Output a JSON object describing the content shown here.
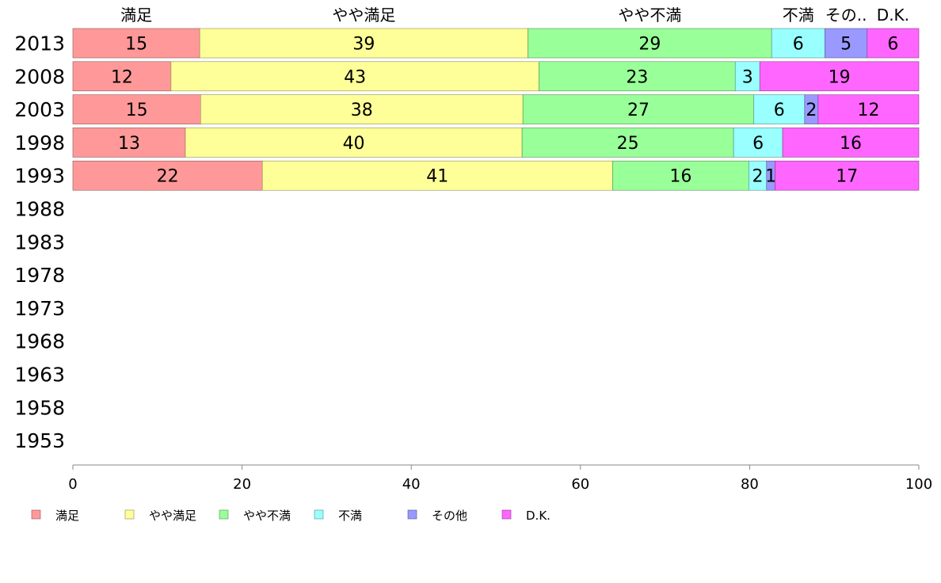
{
  "chart_data": {
    "type": "bar",
    "orientation": "horizontal",
    "stacked": true,
    "categories": [
      "2013",
      "2008",
      "2003",
      "1998",
      "1993",
      "1988",
      "1983",
      "1978",
      "1973",
      "1968",
      "1963",
      "1958",
      "1953"
    ],
    "series": [
      {
        "name": "満足",
        "top_label": "満足",
        "color": "#ff9999",
        "values": [
          15,
          11.6,
          15.1,
          13.3,
          22.4,
          null,
          null,
          null,
          null,
          null,
          null,
          null,
          null
        ],
        "labels": [
          "15",
          "12",
          "15",
          "13",
          "22",
          "",
          "",
          "",
          "",
          "",
          "",
          "",
          ""
        ]
      },
      {
        "name": "やや満足",
        "top_label": "やや満足",
        "color": "#ffff99",
        "values": [
          38.8,
          43.5,
          38.1,
          39.8,
          41.4,
          null,
          null,
          null,
          null,
          null,
          null,
          null,
          null
        ],
        "labels": [
          "39",
          "43",
          "38",
          "40",
          "41",
          "",
          "",
          "",
          "",
          "",
          "",
          "",
          ""
        ]
      },
      {
        "name": "やや不満",
        "top_label": "やや不満",
        "color": "#99ff99",
        "values": [
          28.8,
          23.2,
          27.3,
          25.0,
          16.1,
          null,
          null,
          null,
          null,
          null,
          null,
          null,
          null
        ],
        "labels": [
          "29",
          "23",
          "27",
          "25",
          "16",
          "",
          "",
          "",
          "",
          "",
          "",
          "",
          ""
        ]
      },
      {
        "name": "不満",
        "top_label": "不満",
        "color": "#99ffff",
        "values": [
          6.3,
          2.9,
          6.0,
          5.8,
          2.1,
          null,
          null,
          null,
          null,
          null,
          null,
          null,
          null
        ],
        "labels": [
          "6",
          "3",
          "6",
          "6",
          "2",
          "",
          "",
          "",
          "",
          "",
          "",
          "",
          ""
        ]
      },
      {
        "name": "その他",
        "top_label": "その..",
        "color": "#9999ff",
        "values": [
          5.0,
          0,
          1.6,
          0,
          1.0,
          null,
          null,
          null,
          null,
          null,
          null,
          null,
          null
        ],
        "labels": [
          "5",
          "",
          "2",
          "",
          "1",
          "",
          "",
          "",
          "",
          "",
          "",
          "",
          ""
        ]
      },
      {
        "name": "D.K.",
        "top_label": "D.K.",
        "color": "#ff66ff",
        "values": [
          6.1,
          18.8,
          11.9,
          16.1,
          17.0,
          null,
          null,
          null,
          null,
          null,
          null,
          null,
          null
        ],
        "labels": [
          "6",
          "19",
          "12",
          "16",
          "17",
          "",
          "",
          "",
          "",
          "",
          "",
          "",
          ""
        ]
      }
    ],
    "xlim": [
      0,
      100
    ],
    "xticks": [
      0,
      20,
      40,
      60,
      80,
      100
    ],
    "xtick_labels": [
      "0",
      "20",
      "40",
      "60",
      "80",
      "100"
    ],
    "grid": false,
    "legend_position": "bottom-left"
  }
}
